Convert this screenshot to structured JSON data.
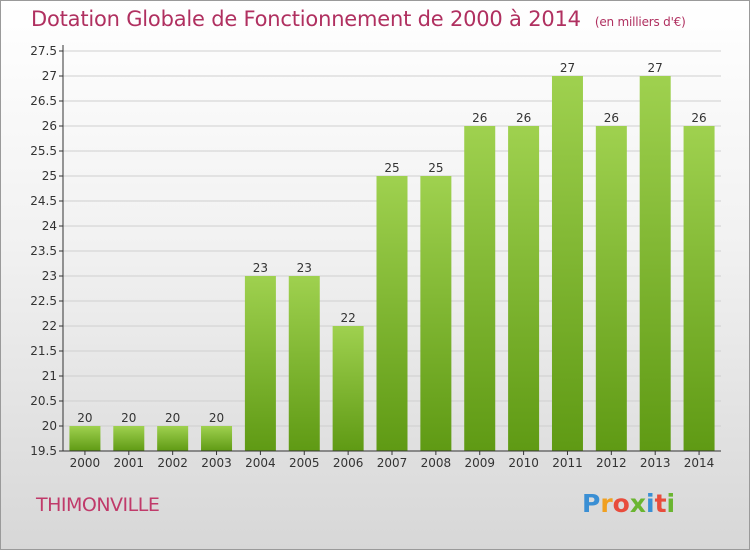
{
  "header": {
    "title": "Dotation Globale de Fonctionnement de 2000 à 2014",
    "unit": "(en milliers d'€)"
  },
  "footer": {
    "commune": "THIMONVILLE",
    "logo_letters": [
      "P",
      "r",
      "o",
      "x",
      "i",
      "t",
      "i"
    ],
    "logo_colors": [
      "#3a8fd4",
      "#f0a020",
      "#e84c3c",
      "#6ab530",
      "#3a8fd4",
      "#e84c3c",
      "#6ab530"
    ]
  },
  "colors": {
    "title": "#b03060",
    "bar_light": "#9fd14f",
    "bar_dark": "#5f9a14",
    "axis": "#333333",
    "grid": "#cfcfcf"
  },
  "chart_data": {
    "type": "bar",
    "categories": [
      "2000",
      "2001",
      "2002",
      "2003",
      "2004",
      "2005",
      "2006",
      "2007",
      "2008",
      "2009",
      "2010",
      "2011",
      "2012",
      "2013",
      "2014"
    ],
    "values": [
      20,
      20,
      20,
      20,
      23,
      23,
      22,
      25,
      25,
      26,
      26,
      27,
      26,
      27,
      26
    ],
    "labels": [
      "20",
      "20",
      "20",
      "20",
      "23",
      "23",
      "22",
      "25",
      "25",
      "26",
      "26",
      "27",
      "26",
      "27",
      "26"
    ],
    "ylim": [
      19.5,
      27.5
    ],
    "yticks": [
      "19.5",
      "20",
      "20.5",
      "21",
      "21.5",
      "22",
      "22.5",
      "23",
      "23.5",
      "24",
      "24.5",
      "25",
      "25.5",
      "26",
      "26.5",
      "27",
      "27.5"
    ],
    "grid": true
  }
}
